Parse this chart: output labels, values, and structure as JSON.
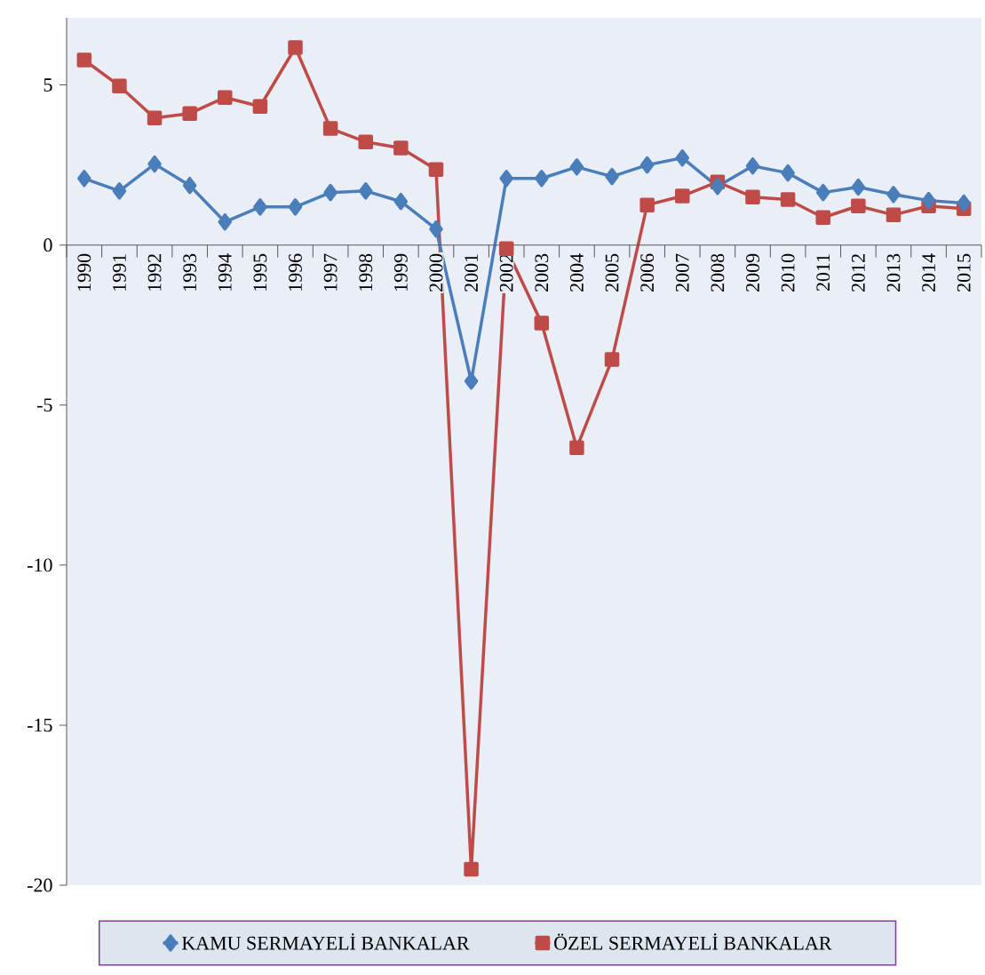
{
  "chart_data": {
    "type": "line",
    "categories": [
      "1990",
      "1991",
      "1992",
      "1993",
      "1994",
      "1995",
      "1996",
      "1997",
      "1998",
      "1999",
      "2000",
      "2001",
      "2002",
      "2003",
      "2004",
      "2005",
      "2006",
      "2007",
      "2008",
      "2009",
      "2010",
      "2011",
      "2012",
      "2013",
      "2014",
      "2015"
    ],
    "series": [
      {
        "name": "KAMU SERMAYELİ BANKALAR",
        "color": "#4a7ebb",
        "marker": "diamond",
        "values": [
          2.08,
          1.69,
          2.53,
          1.86,
          0.72,
          1.19,
          1.19,
          1.64,
          1.69,
          1.36,
          0.5,
          -4.25,
          2.08,
          2.08,
          2.44,
          2.14,
          2.5,
          2.72,
          1.83,
          2.47,
          2.25,
          1.64,
          1.81,
          1.58,
          1.39,
          1.31
        ]
      },
      {
        "name": "ÖZEL SERMAYELİ BANKALAR",
        "color": "#be4b48",
        "marker": "square",
        "values": [
          5.78,
          4.97,
          3.97,
          4.11,
          4.61,
          4.33,
          6.17,
          3.64,
          3.22,
          3.03,
          2.36,
          -19.5,
          -0.11,
          -2.44,
          -6.33,
          -3.58,
          1.25,
          1.53,
          1.97,
          1.5,
          1.42,
          0.86,
          1.22,
          0.94,
          1.22,
          1.14
        ]
      }
    ],
    "ylim": [
      -20,
      7.1
    ],
    "yticks": [
      -20,
      -15,
      -10,
      -5,
      0,
      5
    ],
    "grid": false,
    "legend": "bottom",
    "line_style": "solid"
  }
}
